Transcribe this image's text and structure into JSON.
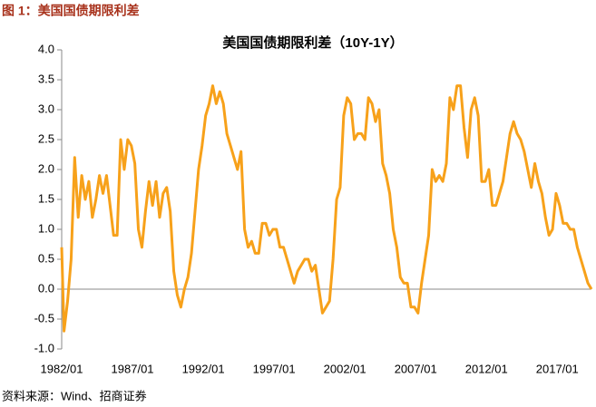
{
  "figure_title": "图 1：美国国债期限利差",
  "source": "资料来源：Wind、招商证券",
  "chart_data": {
    "type": "line",
    "title": "美国国债期限利差（10Y-1Y）",
    "color": "#f7a11a",
    "xlim": [
      "1982/01",
      "2019/06"
    ],
    "xticks": [
      "1982/01",
      "1987/01",
      "1992/01",
      "1997/01",
      "2002/01",
      "2007/01",
      "2012/01",
      "2017/01"
    ],
    "ylim": [
      -1,
      4
    ],
    "yticks": [
      {
        "value": -1,
        "label": "-1.0"
      },
      -0.5,
      {
        "value": 0,
        "label": "0.0"
      },
      0.5,
      {
        "value": 1,
        "label": "1.0"
      },
      1.5,
      {
        "value": 2,
        "label": "2.0"
      },
      2.5,
      {
        "value": 3,
        "label": "3.0"
      },
      3.5,
      {
        "value": 4,
        "label": "4.0"
      }
    ],
    "grid": false,
    "x": [
      "1982/01",
      "1982/03",
      "1982/06",
      "1982/09",
      "1982/12",
      "1983/03",
      "1983/06",
      "1983/09",
      "1983/12",
      "1984/03",
      "1984/06",
      "1984/09",
      "1984/12",
      "1985/03",
      "1985/06",
      "1985/09",
      "1985/12",
      "1986/03",
      "1986/06",
      "1986/09",
      "1986/12",
      "1987/03",
      "1987/06",
      "1987/09",
      "1987/12",
      "1988/03",
      "1988/06",
      "1988/09",
      "1988/12",
      "1989/03",
      "1989/06",
      "1989/09",
      "1989/12",
      "1990/03",
      "1990/06",
      "1990/09",
      "1990/12",
      "1991/03",
      "1991/06",
      "1991/09",
      "1991/12",
      "1992/03",
      "1992/06",
      "1992/09",
      "1992/12",
      "1993/03",
      "1993/06",
      "1993/09",
      "1993/12",
      "1994/03",
      "1994/06",
      "1994/09",
      "1994/12",
      "1995/03",
      "1995/06",
      "1995/09",
      "1995/12",
      "1996/03",
      "1996/06",
      "1996/09",
      "1996/12",
      "1997/03",
      "1997/06",
      "1997/09",
      "1997/12",
      "1998/03",
      "1998/06",
      "1998/09",
      "1998/12",
      "1999/03",
      "1999/06",
      "1999/09",
      "1999/12",
      "2000/03",
      "2000/06",
      "2000/09",
      "2000/12",
      "2001/03",
      "2001/06",
      "2001/09",
      "2001/12",
      "2002/03",
      "2002/06",
      "2002/09",
      "2002/12",
      "2003/03",
      "2003/06",
      "2003/09",
      "2003/12",
      "2004/03",
      "2004/06",
      "2004/09",
      "2004/12",
      "2005/03",
      "2005/06",
      "2005/09",
      "2005/12",
      "2006/03",
      "2006/06",
      "2006/09",
      "2006/12",
      "2007/03",
      "2007/06",
      "2007/09",
      "2007/12",
      "2008/03",
      "2008/06",
      "2008/09",
      "2008/12",
      "2009/03",
      "2009/06",
      "2009/09",
      "2009/12",
      "2010/03",
      "2010/06",
      "2010/09",
      "2010/12",
      "2011/03",
      "2011/06",
      "2011/09",
      "2011/12",
      "2012/03",
      "2012/06",
      "2012/09",
      "2012/12",
      "2013/03",
      "2013/06",
      "2013/09",
      "2013/12",
      "2014/03",
      "2014/06",
      "2014/09",
      "2014/12",
      "2015/03",
      "2015/06",
      "2015/09",
      "2015/12",
      "2016/03",
      "2016/06",
      "2016/09",
      "2016/12",
      "2017/03",
      "2017/06",
      "2017/09",
      "2017/12",
      "2018/03",
      "2018/06",
      "2018/09",
      "2018/12",
      "2019/03",
      "2019/06"
    ],
    "values": [
      0.7,
      -0.7,
      -0.2,
      0.5,
      2.2,
      1.2,
      1.9,
      1.5,
      1.8,
      1.2,
      1.5,
      1.9,
      1.6,
      1.9,
      1.4,
      0.9,
      0.9,
      2.5,
      2.0,
      2.5,
      2.4,
      2.1,
      1.0,
      0.7,
      1.3,
      1.8,
      1.4,
      1.8,
      1.2,
      1.6,
      1.7,
      1.3,
      0.3,
      -0.1,
      -0.3,
      0.0,
      0.2,
      0.6,
      1.3,
      2.0,
      2.4,
      2.9,
      3.1,
      3.4,
      3.1,
      3.3,
      3.1,
      2.6,
      2.4,
      2.2,
      2.0,
      2.3,
      1.0,
      0.7,
      0.8,
      0.6,
      0.6,
      1.1,
      1.1,
      0.9,
      1.0,
      1.0,
      0.7,
      0.7,
      0.5,
      0.3,
      0.1,
      0.3,
      0.4,
      0.5,
      0.5,
      0.3,
      0.4,
      0.0,
      -0.4,
      -0.3,
      -0.2,
      0.5,
      1.5,
      1.7,
      2.9,
      3.2,
      3.1,
      2.5,
      2.6,
      2.6,
      2.5,
      3.2,
      3.1,
      2.8,
      3.0,
      2.1,
      1.9,
      1.6,
      1.0,
      0.7,
      0.2,
      0.1,
      0.1,
      -0.3,
      -0.3,
      -0.4,
      0.1,
      0.5,
      0.9,
      2.0,
      1.8,
      1.9,
      1.8,
      2.1,
      3.2,
      3.0,
      3.4,
      3.4,
      2.7,
      2.2,
      3.0,
      3.2,
      2.9,
      1.8,
      1.8,
      2.0,
      1.4,
      1.4,
      1.6,
      1.8,
      2.2,
      2.6,
      2.8,
      2.6,
      2.5,
      2.3,
      2.0,
      1.7,
      2.1,
      1.8,
      1.6,
      1.2,
      0.9,
      1.0,
      1.6,
      1.4,
      1.1,
      1.1,
      1.0,
      1.0,
      0.7,
      0.5,
      0.3,
      0.1,
      0.0
    ]
  }
}
